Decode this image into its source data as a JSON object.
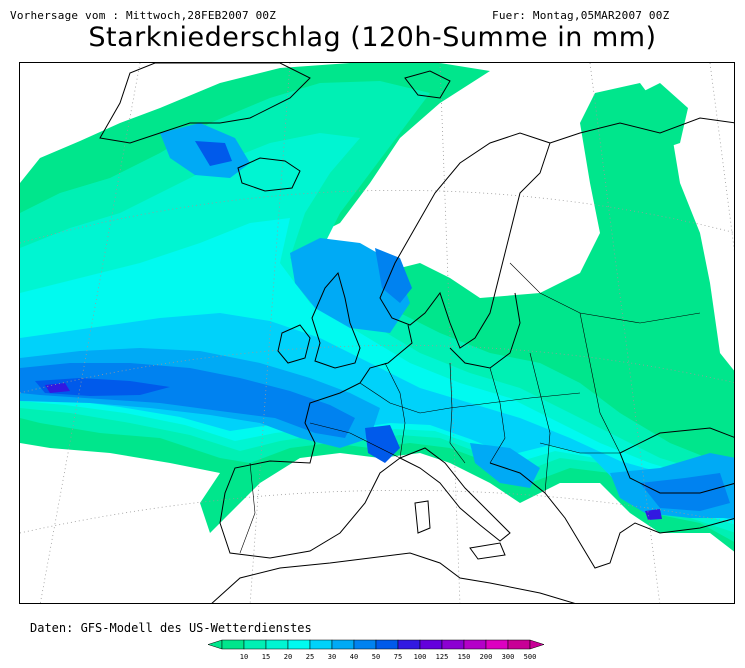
{
  "header": {
    "run_info": "Vorhersage vom : Mittwoch,28FEB2007 00Z",
    "valid_info": "Fuer: Montag,05MAR2007 00Z",
    "title": "Starkniederschlag (120h-Summe in mm)"
  },
  "footer": {
    "source_note": "Daten: GFS-Modell des US-Wetterdienstes"
  },
  "legend": {
    "thresholds": [
      "10",
      "15",
      "20",
      "25",
      "30",
      "40",
      "50",
      "75",
      "100",
      "125",
      "150",
      "200",
      "300",
      "500"
    ],
    "colors": [
      "#00e68c",
      "#00f0b4",
      "#00f5d2",
      "#00faf0",
      "#00d2fa",
      "#00aaf5",
      "#0082f0",
      "#005aeb",
      "#3219e1",
      "#6400dc",
      "#8c00d2",
      "#b400c8",
      "#dc00c0",
      "#c80096"
    ]
  },
  "map": {
    "region": "Europe and North Atlantic",
    "level_colors": {
      "l10": "#00e68c",
      "l15": "#00f0b4",
      "l20": "#00f5d2",
      "l25": "#00faf0",
      "l30": "#00d2fa",
      "l40": "#00aaf5",
      "l50": "#0082f0",
      "l75": "#005aeb",
      "l100": "#3219e1"
    }
  }
}
